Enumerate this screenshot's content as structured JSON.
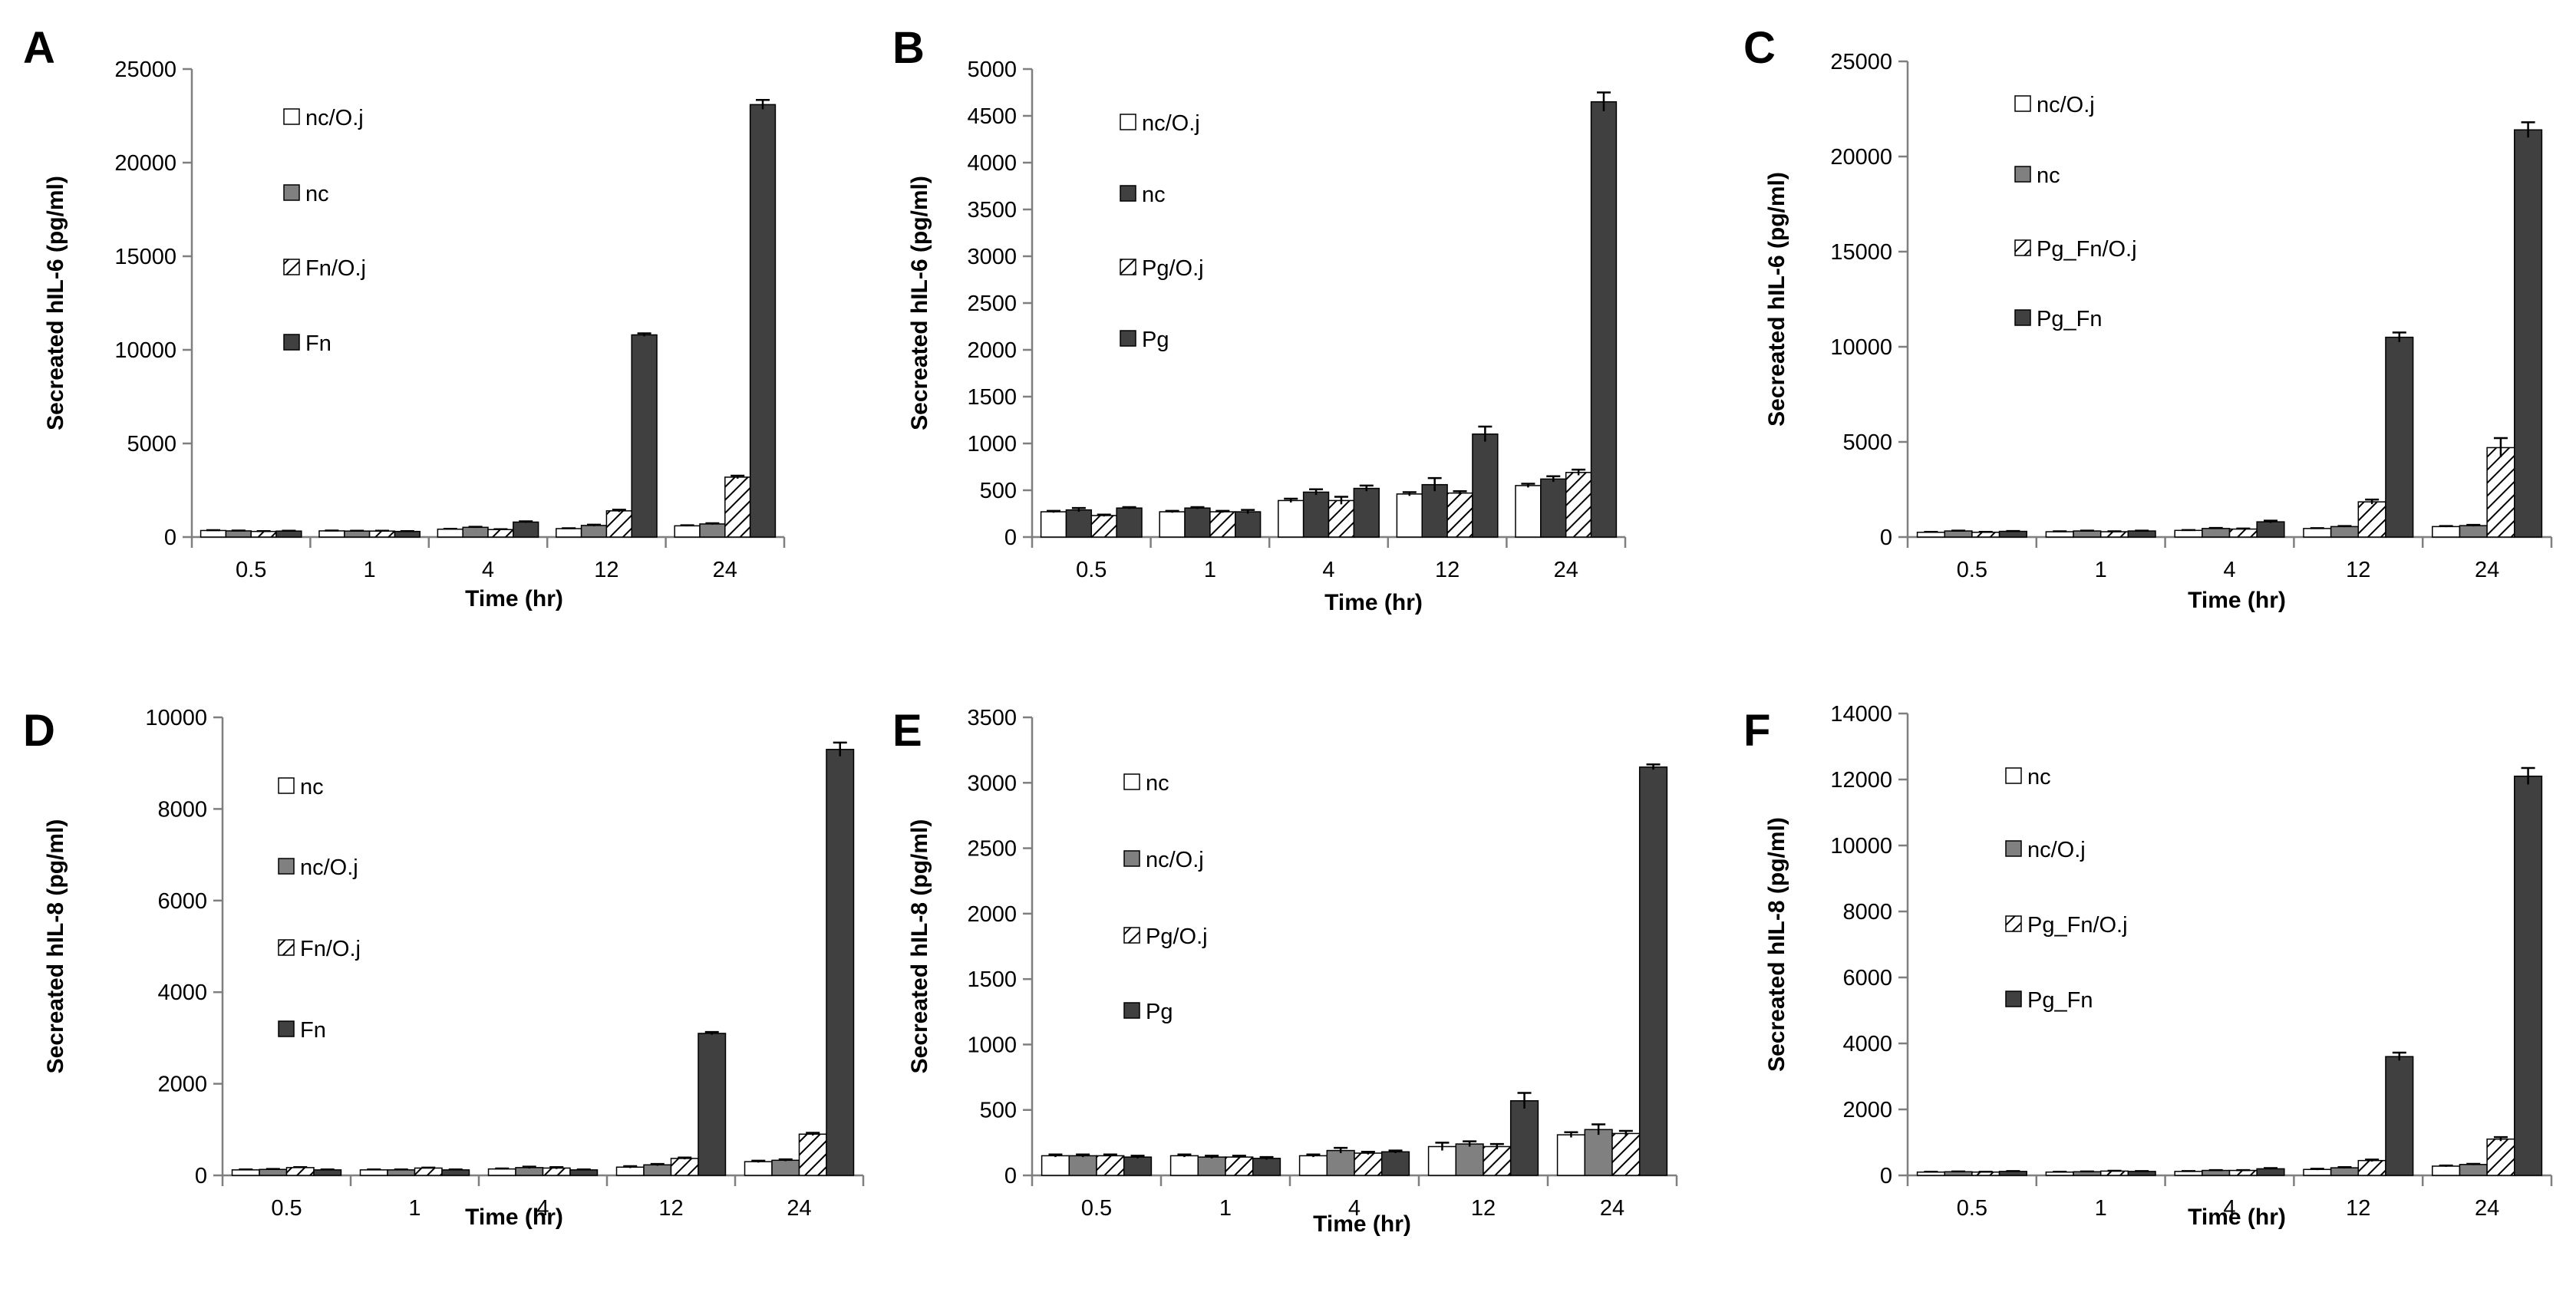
{
  "colors": {
    "white": "#ffffff",
    "grey": "#808080",
    "dark": "#404040",
    "edge": "#000000",
    "axis": "#7f7f7f"
  },
  "chart_data": [
    {
      "type": "bar",
      "panel": "A",
      "ylabel": "Secreated hIL-6 (pg/ml)",
      "xlabel": "Time (hr)",
      "categories": [
        "0.5",
        "1",
        "4",
        "12",
        "24"
      ],
      "ylim": [
        0,
        25000
      ],
      "yticks": [
        0,
        5000,
        10000,
        15000,
        20000,
        25000
      ],
      "series": [
        {
          "name": "nc/O.j",
          "fill": "white",
          "values": [
            350,
            330,
            420,
            450,
            600
          ],
          "errors": [
            20,
            20,
            20,
            20,
            30
          ]
        },
        {
          "name": "nc",
          "fill": "grey",
          "values": [
            330,
            320,
            520,
            620,
            700
          ],
          "errors": [
            20,
            20,
            30,
            40,
            40
          ]
        },
        {
          "name": "Fn/O.j",
          "fill": "hatch",
          "values": [
            300,
            320,
            400,
            1400,
            3200
          ],
          "errors": [
            20,
            20,
            20,
            60,
            80
          ]
        },
        {
          "name": "Fn",
          "fill": "dark",
          "values": [
            320,
            300,
            800,
            10800,
            23100
          ],
          "errors": [
            20,
            20,
            40,
            80,
            250
          ]
        }
      ]
    },
    {
      "type": "bar",
      "panel": "B",
      "ylabel": "Secreated hIL-6 (pg/ml)",
      "xlabel": "Time (hr)",
      "categories": [
        "0.5",
        "1",
        "4",
        "12",
        "24"
      ],
      "ylim": [
        0,
        5000
      ],
      "yticks": [
        0,
        500,
        1000,
        1500,
        2000,
        2500,
        3000,
        3500,
        4000,
        4500,
        5000
      ],
      "series": [
        {
          "name": "nc/O.j",
          "fill": "white",
          "values": [
            270,
            270,
            390,
            460,
            550
          ],
          "errors": [
            10,
            10,
            20,
            20,
            20
          ]
        },
        {
          "name": "nc",
          "fill": "dark",
          "values": [
            290,
            310,
            480,
            560,
            620
          ],
          "errors": [
            20,
            10,
            30,
            70,
            30
          ]
        },
        {
          "name": "Pg/O.j",
          "fill": "hatch",
          "values": [
            230,
            270,
            390,
            470,
            690
          ],
          "errors": [
            10,
            10,
            40,
            20,
            30
          ]
        },
        {
          "name": "Pg",
          "fill": "dark",
          "values": [
            310,
            270,
            520,
            1100,
            4650
          ],
          "errors": [
            10,
            20,
            30,
            80,
            100
          ]
        }
      ]
    },
    {
      "type": "bar",
      "panel": "C",
      "ylabel": "Secreated hIL-6 (pg/ml)",
      "xlabel": "Time (hr)",
      "categories": [
        "0.5",
        "1",
        "4",
        "12",
        "24"
      ],
      "ylim": [
        0,
        25000
      ],
      "yticks": [
        0,
        5000,
        10000,
        15000,
        20000,
        25000
      ],
      "series": [
        {
          "name": "nc/O.j",
          "fill": "white",
          "values": [
            250,
            280,
            350,
            450,
            550
          ],
          "errors": [
            20,
            20,
            20,
            20,
            30
          ]
        },
        {
          "name": "nc",
          "fill": "grey",
          "values": [
            320,
            320,
            450,
            550,
            600
          ],
          "errors": [
            20,
            20,
            30,
            30,
            40
          ]
        },
        {
          "name": "Pg_Fn/O.j",
          "fill": "hatch",
          "values": [
            250,
            280,
            420,
            1850,
            4700
          ],
          "errors": [
            20,
            20,
            30,
            120,
            500
          ]
        },
        {
          "name": "Pg_Fn",
          "fill": "dark",
          "values": [
            300,
            320,
            800,
            10500,
            21400
          ],
          "errors": [
            20,
            20,
            60,
            250,
            400
          ]
        }
      ]
    },
    {
      "type": "bar",
      "panel": "D",
      "ylabel": "Secreated hIL-8 (pg/ml)",
      "xlabel": "Time (hr)",
      "categories": [
        "0.5",
        "1",
        "4",
        "12",
        "24"
      ],
      "ylim": [
        0,
        10000
      ],
      "yticks": [
        0,
        2000,
        4000,
        6000,
        8000,
        10000
      ],
      "series": [
        {
          "name": "nc",
          "fill": "white",
          "values": [
            120,
            120,
            140,
            180,
            300
          ],
          "errors": [
            10,
            10,
            10,
            20,
            20
          ]
        },
        {
          "name": "nc/O.j",
          "fill": "grey",
          "values": [
            130,
            120,
            170,
            230,
            330
          ],
          "errors": [
            10,
            10,
            20,
            20,
            20
          ]
        },
        {
          "name": "Fn/O.j",
          "fill": "hatch",
          "values": [
            170,
            160,
            160,
            370,
            900
          ],
          "errors": [
            10,
            10,
            20,
            20,
            30
          ]
        },
        {
          "name": "Fn",
          "fill": "dark",
          "values": [
            120,
            120,
            120,
            3100,
            9300
          ],
          "errors": [
            10,
            10,
            10,
            30,
            150
          ]
        }
      ]
    },
    {
      "type": "bar",
      "panel": "E",
      "ylabel": "Secreated hIL-8 (pg/ml)",
      "xlabel": "Time (hr)",
      "categories": [
        "0.5",
        "1",
        "4",
        "12",
        "24"
      ],
      "ylim": [
        0,
        3500
      ],
      "yticks": [
        0,
        500,
        1000,
        1500,
        2000,
        2500,
        3000,
        3500
      ],
      "series": [
        {
          "name": "nc",
          "fill": "white",
          "values": [
            150,
            150,
            150,
            220,
            310
          ],
          "errors": [
            10,
            10,
            10,
            30,
            20
          ]
        },
        {
          "name": "nc/O.j",
          "fill": "grey",
          "values": [
            150,
            140,
            190,
            240,
            350
          ],
          "errors": [
            10,
            10,
            20,
            20,
            40
          ]
        },
        {
          "name": "Pg/O.j",
          "fill": "hatch",
          "values": [
            150,
            140,
            170,
            220,
            320
          ],
          "errors": [
            10,
            10,
            10,
            20,
            20
          ]
        },
        {
          "name": "Pg",
          "fill": "dark",
          "values": [
            140,
            130,
            180,
            570,
            3120
          ],
          "errors": [
            10,
            10,
            10,
            60,
            20
          ]
        }
      ]
    },
    {
      "type": "bar",
      "panel": "F",
      "ylabel": "Secreated hIL-8 (pg/ml)",
      "xlabel": "Time (hr)",
      "categories": [
        "0.5",
        "1",
        "4",
        "12",
        "24"
      ],
      "ylim": [
        0,
        14000
      ],
      "yticks": [
        0,
        2000,
        4000,
        6000,
        8000,
        10000,
        12000,
        14000
      ],
      "series": [
        {
          "name": "nc",
          "fill": "white",
          "values": [
            100,
            100,
            120,
            180,
            280
          ],
          "errors": [
            10,
            10,
            10,
            20,
            20
          ]
        },
        {
          "name": "nc/O.j",
          "fill": "grey",
          "values": [
            110,
            110,
            150,
            230,
            330
          ],
          "errors": [
            10,
            10,
            10,
            20,
            20
          ]
        },
        {
          "name": "Pg_Fn/O.j",
          "fill": "hatch",
          "values": [
            100,
            130,
            150,
            450,
            1100
          ],
          "errors": [
            10,
            10,
            10,
            30,
            60
          ]
        },
        {
          "name": "Pg_Fn",
          "fill": "dark",
          "values": [
            120,
            120,
            200,
            3600,
            12100
          ],
          "errors": [
            10,
            10,
            20,
            120,
            250
          ]
        }
      ]
    }
  ]
}
